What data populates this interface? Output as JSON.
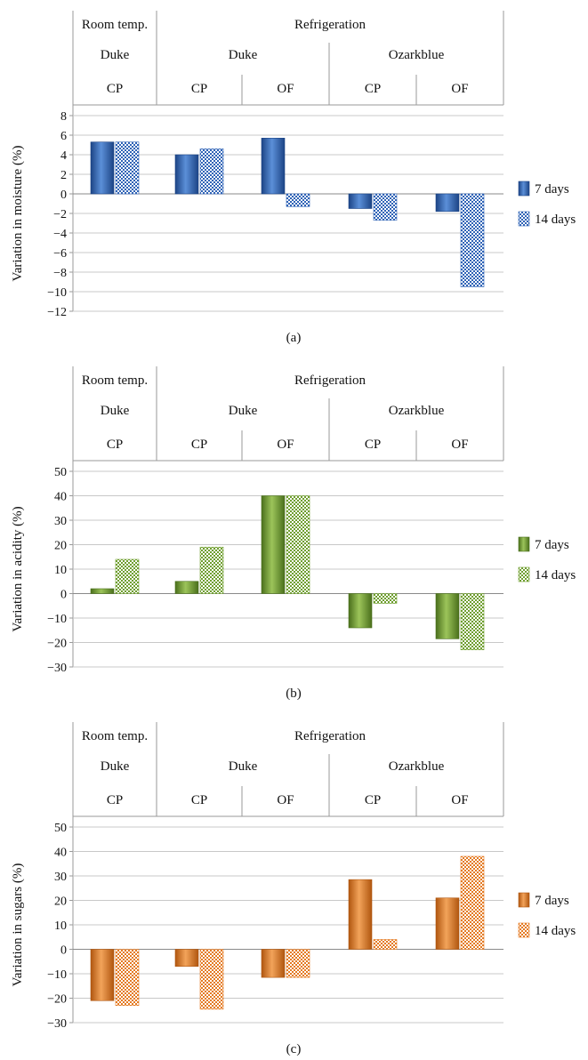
{
  "chart_data": [
    {
      "type": "bar",
      "caption": "(a)",
      "ylabel": "Variation in moisture (%)",
      "ylim": [
        -12,
        8
      ],
      "ystep": 2,
      "grid": true,
      "header": {
        "storage": [
          {
            "label": "Room temp.",
            "span": 1
          },
          {
            "label": "Refrigeration",
            "span": 4
          }
        ],
        "cultivar": [
          {
            "label": "Duke",
            "span": 1
          },
          {
            "label": "Duke",
            "span": 2
          },
          {
            "label": "Ozarkblue",
            "span": 2
          }
        ],
        "treatment": [
          "CP",
          "CP",
          "OF",
          "CP",
          "OF"
        ]
      },
      "categories": [
        "CP",
        "CP",
        "OF",
        "CP",
        "OF"
      ],
      "series": [
        {
          "name": "7 days",
          "values": [
            5.3,
            4.0,
            5.7,
            -1.5,
            -1.8
          ]
        },
        {
          "name": "14 days",
          "values": [
            5.3,
            4.6,
            -1.3,
            -2.7,
            -9.5
          ]
        }
      ],
      "legend_position": "right",
      "colors": {
        "solid": "#2f63b6",
        "solid_dark": "#1c4485",
        "solid_light": "#5b8fd8",
        "pattern": "#2f63b6"
      }
    },
    {
      "type": "bar",
      "caption": "(b)",
      "ylabel": "Variation in acidity (%)",
      "ylim": [
        -30,
        50
      ],
      "ystep": 10,
      "grid": true,
      "header": {
        "storage": [
          {
            "label": "Room temp.",
            "span": 1
          },
          {
            "label": "Refrigeration",
            "span": 4
          }
        ],
        "cultivar": [
          {
            "label": "Duke",
            "span": 1
          },
          {
            "label": "Duke",
            "span": 2
          },
          {
            "label": "Ozarkblue",
            "span": 2
          }
        ],
        "treatment": [
          "CP",
          "CP",
          "OF",
          "CP",
          "OF"
        ]
      },
      "categories": [
        "CP",
        "CP",
        "OF",
        "CP",
        "OF"
      ],
      "series": [
        {
          "name": "7 days",
          "values": [
            2,
            5,
            40,
            -14,
            -18.5
          ]
        },
        {
          "name": "14 days",
          "values": [
            14,
            19,
            40,
            -4,
            -23
          ]
        }
      ],
      "legend_position": "right",
      "colors": {
        "solid": "#6f9e2f",
        "solid_dark": "#4a6f1c",
        "solid_light": "#9cc45a",
        "pattern": "#6f9e2f"
      }
    },
    {
      "type": "bar",
      "caption": "(c)",
      "ylabel": "Variation in sugars (%)",
      "ylim": [
        -30,
        50
      ],
      "ystep": 10,
      "grid": true,
      "header": {
        "storage": [
          {
            "label": "Room temp.",
            "span": 1
          },
          {
            "label": "Refrigeration",
            "span": 4
          }
        ],
        "cultivar": [
          {
            "label": "Duke",
            "span": 1
          },
          {
            "label": "Duke",
            "span": 2
          },
          {
            "label": "Ozarkblue",
            "span": 2
          }
        ],
        "treatment": [
          "CP",
          "CP",
          "OF",
          "CP",
          "OF"
        ]
      },
      "categories": [
        "CP",
        "CP",
        "OF",
        "CP",
        "OF"
      ],
      "series": [
        {
          "name": "7 days",
          "values": [
            -21,
            -7,
            -11.5,
            28.5,
            21
          ]
        },
        {
          "name": "14 days",
          "values": [
            -23,
            -24.5,
            -11.5,
            4,
            38
          ]
        }
      ],
      "legend_position": "right",
      "colors": {
        "solid": "#e47a22",
        "solid_dark": "#b0560f",
        "solid_light": "#f2a35a",
        "pattern": "#e47a22"
      }
    }
  ]
}
